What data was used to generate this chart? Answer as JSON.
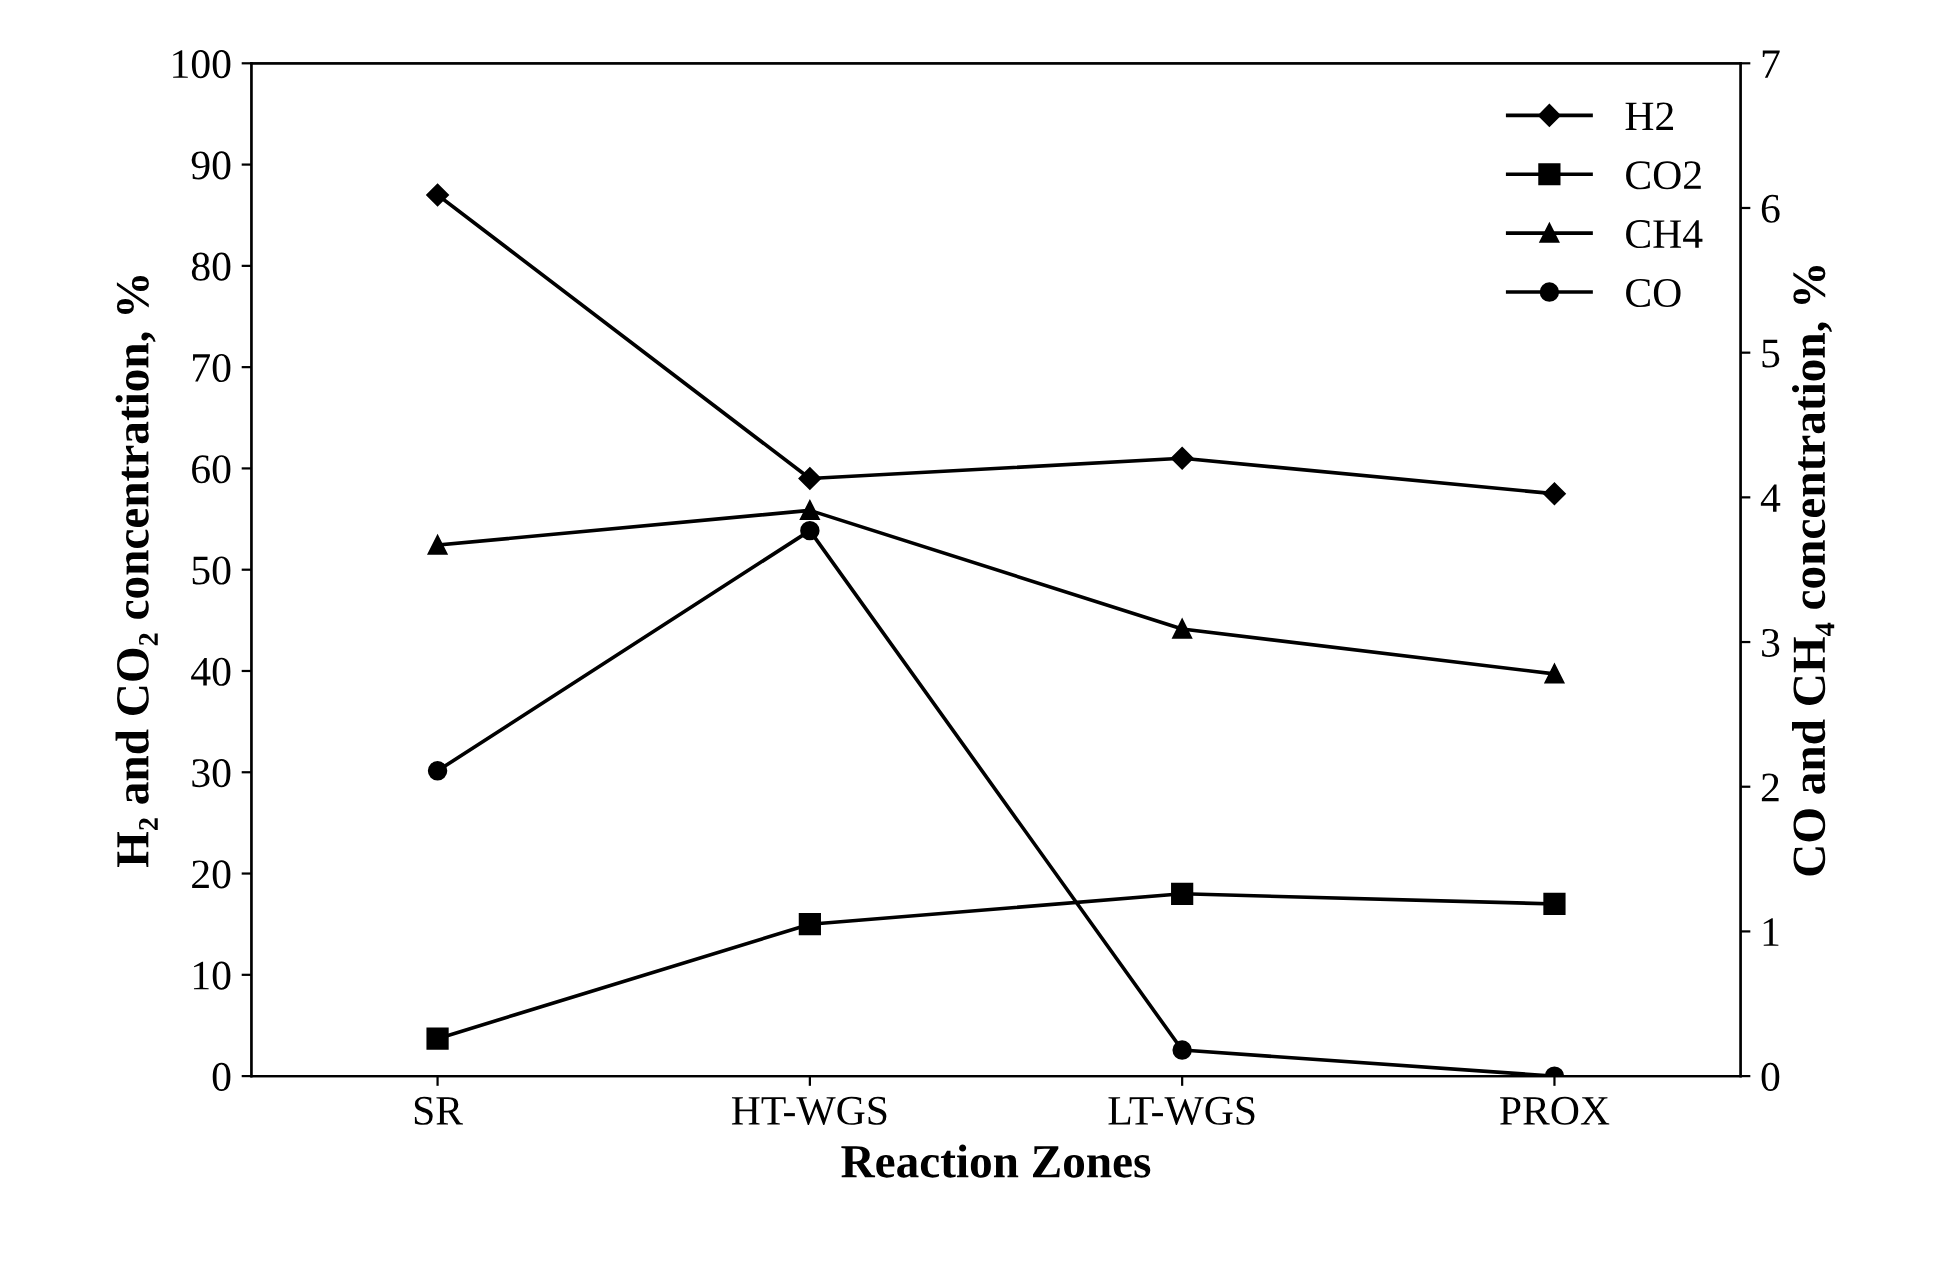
{
  "chart_data": {
    "type": "line",
    "xlabel": "Reaction Zones",
    "ylabel": "H₂ and CO₂ concentration, %",
    "y2label": "CO and CH₄ concentration, %",
    "categories": [
      "SR",
      "HT-WGS",
      "LT-WGS",
      "PROX"
    ],
    "series": [
      {
        "name": "H2",
        "color": "#000000",
        "marker": "diamond",
        "values": [
          87,
          59,
          61,
          57.5
        ]
      },
      {
        "name": "CO2",
        "color": "#000000",
        "marker": "square",
        "values": [
          3.7,
          15,
          18,
          17
        ]
      },
      {
        "name": "CH4",
        "color": "#000000",
        "marker": "triangle",
        "axis": "y2",
        "values": [
          3.67,
          3.91,
          3.09,
          2.78
        ]
      },
      {
        "name": "CO",
        "color": "#000000",
        "marker": "circle",
        "axis": "y2",
        "values": [
          2.11,
          3.77,
          0.18,
          0
        ]
      }
    ],
    "ylim": [
      0,
      100
    ],
    "yticks": [
      0,
      10,
      20,
      30,
      40,
      50,
      60,
      70,
      80,
      90,
      100
    ],
    "y2lim": [
      0,
      7
    ],
    "y2ticks": [
      0,
      1,
      2,
      3,
      4,
      5,
      6,
      7
    ],
    "grid": false,
    "legend": "top right",
    "line_style": "solid"
  }
}
